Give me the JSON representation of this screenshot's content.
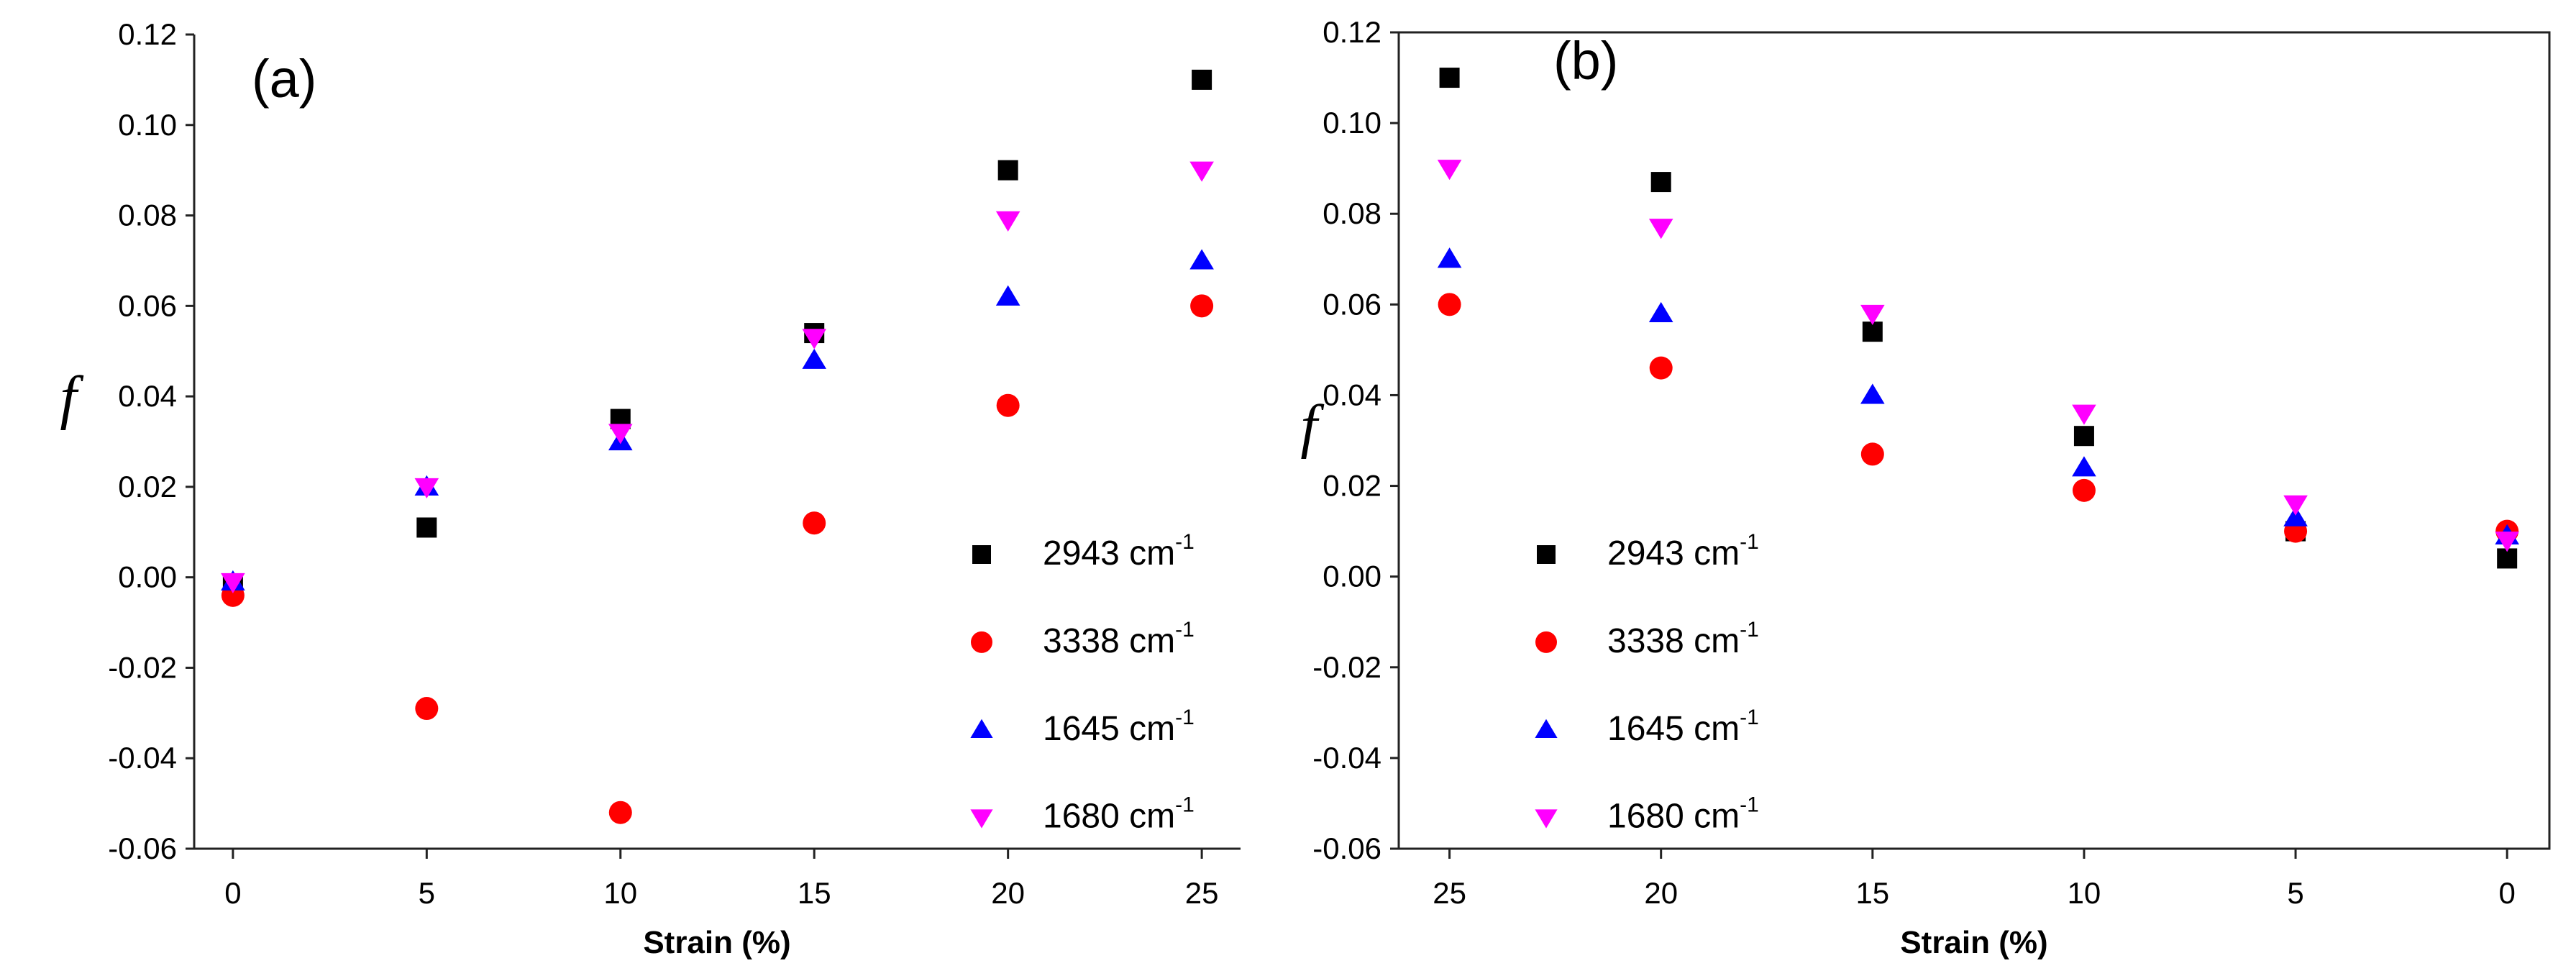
{
  "figure": {
    "y_axis_symbol": "f"
  },
  "chart_data": [
    {
      "type": "scatter",
      "panel": "(a)",
      "title": "",
      "xlabel": "Strain (%)",
      "ylabel": "f",
      "xlim": [
        -1,
        26
      ],
      "ylim": [
        -0.06,
        0.12
      ],
      "x_reversed": false,
      "grid": false,
      "legend_position": "lower-right",
      "x_ticks": [
        0,
        5,
        10,
        15,
        20,
        25
      ],
      "x_tick_labels": [
        "0",
        "5",
        "10",
        "15",
        "20",
        "25"
      ],
      "y_ticks": [
        -0.06,
        -0.04,
        -0.02,
        0.0,
        0.02,
        0.04,
        0.06,
        0.08,
        0.1,
        0.12
      ],
      "y_tick_labels": [
        "-0.06",
        "-0.04",
        "-0.02",
        "0.00",
        "0.02",
        "0.04",
        "0.06",
        "0.08",
        "0.10",
        "0.12"
      ],
      "series": [
        {
          "name": "2943 cm",
          "sup": "-1",
          "marker": "square",
          "color": "#000000",
          "x": [
            0,
            5,
            10,
            15,
            20,
            25
          ],
          "y": [
            -0.002,
            0.011,
            0.035,
            0.054,
            0.09,
            0.11
          ]
        },
        {
          "name": "3338 cm",
          "sup": "-1",
          "marker": "circle",
          "color": "#ff0000",
          "x": [
            0,
            5,
            10,
            15,
            20,
            25
          ],
          "y": [
            -0.004,
            -0.029,
            -0.052,
            0.012,
            0.038,
            0.06
          ]
        },
        {
          "name": "1645 cm",
          "sup": "-1",
          "marker": "triangle-up",
          "color": "#0000ff",
          "x": [
            0,
            5,
            10,
            15,
            20,
            25
          ],
          "y": [
            -0.001,
            0.02,
            0.03,
            0.048,
            0.062,
            0.07
          ]
        },
        {
          "name": "1680 cm",
          "sup": "-1",
          "marker": "triangle-down",
          "color": "#ff00ff",
          "x": [
            0,
            5,
            10,
            15,
            20,
            25
          ],
          "y": [
            -0.001,
            0.02,
            0.032,
            0.053,
            0.079,
            0.09
          ]
        }
      ]
    },
    {
      "type": "scatter",
      "panel": "(b)",
      "title": "",
      "xlabel": "Strain (%)",
      "ylabel": "f",
      "xlim": [
        26.2,
        -1
      ],
      "ylim": [
        -0.06,
        0.12
      ],
      "x_reversed": true,
      "grid": false,
      "legend_position": "lower-left",
      "x_ticks": [
        25,
        20,
        15,
        10,
        5,
        0
      ],
      "x_tick_labels": [
        "25",
        "20",
        "15",
        "10",
        "5",
        "0"
      ],
      "y_ticks": [
        -0.06,
        -0.04,
        -0.02,
        0.0,
        0.02,
        0.04,
        0.06,
        0.08,
        0.1,
        0.12
      ],
      "y_tick_labels": [
        "-0.06",
        "-0.04",
        "-0.02",
        "0.00",
        "0.02",
        "0.04",
        "0.06",
        "0.08",
        "0.10",
        "0.12"
      ],
      "series": [
        {
          "name": "2943 cm",
          "sup": "-1",
          "marker": "square",
          "color": "#000000",
          "x": [
            25,
            20,
            15,
            10,
            5,
            0
          ],
          "y": [
            0.11,
            0.087,
            0.054,
            0.031,
            0.01,
            0.004
          ]
        },
        {
          "name": "3338 cm",
          "sup": "-1",
          "marker": "circle",
          "color": "#ff0000",
          "x": [
            25,
            20,
            15,
            10,
            5,
            0
          ],
          "y": [
            0.06,
            0.046,
            0.027,
            0.019,
            0.01,
            0.01
          ]
        },
        {
          "name": "1645 cm",
          "sup": "-1",
          "marker": "triangle-up",
          "color": "#0000ff",
          "x": [
            25,
            20,
            15,
            10,
            5,
            0
          ],
          "y": [
            0.07,
            0.058,
            0.04,
            0.024,
            0.013,
            0.009
          ]
        },
        {
          "name": "1680 cm",
          "sup": "-1",
          "marker": "triangle-down",
          "color": "#ff00ff",
          "x": [
            25,
            20,
            15,
            10,
            5,
            0
          ],
          "y": [
            0.09,
            0.077,
            0.058,
            0.036,
            0.016,
            0.008
          ]
        }
      ]
    }
  ]
}
